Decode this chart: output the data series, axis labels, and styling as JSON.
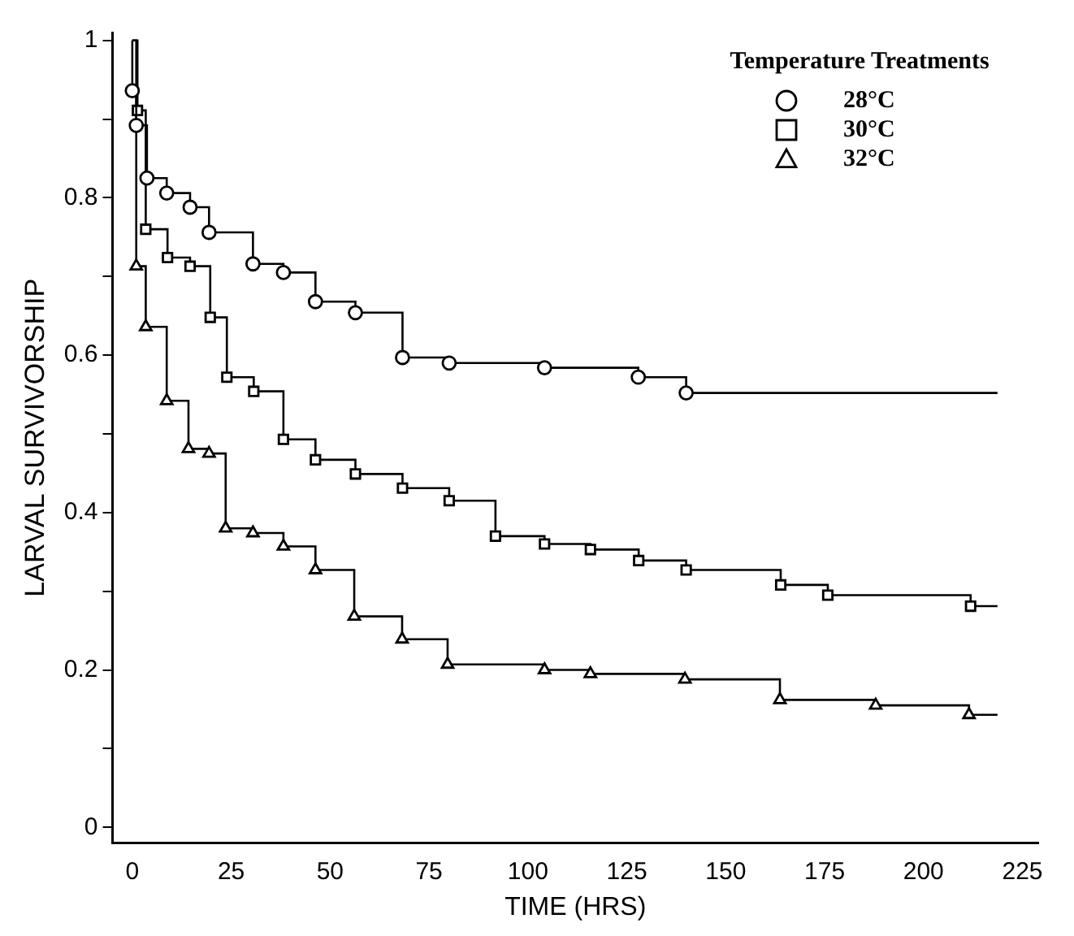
{
  "chart_data": {
    "type": "step",
    "xlabel": "TIME (HRS)",
    "ylabel": "LARVAL SURVIVORSHIP",
    "legend_title": "Temperature Treatments",
    "legend": "top right",
    "grid": false,
    "line_style": "solid",
    "xlim": [
      -5,
      229
    ],
    "xticks": [
      0,
      25,
      50,
      75,
      100,
      125,
      150,
      175,
      200,
      225
    ],
    "ylim": [
      -0.02,
      1.01
    ],
    "yticks": [
      0,
      {
        "value": 0.1,
        "label": null
      },
      0.2,
      {
        "value": 0.3,
        "label": null
      },
      0.4,
      {
        "value": 0.5,
        "label": null
      },
      0.6,
      {
        "value": 0.7,
        "label": null
      },
      0.8,
      {
        "value": 0.9,
        "label": null
      },
      1
    ],
    "series": [
      {
        "name": "28°C",
        "color": "#000000",
        "marker": "circle",
        "x": [
          0,
          0,
          1,
          3.7,
          8.7,
          14.6,
          19.4,
          30.5,
          38.2,
          46.3,
          56.4,
          68.3,
          80.1,
          104.2,
          127.9,
          140,
          218.7
        ],
        "values": [
          1,
          0.936,
          0.892,
          0.825,
          0.806,
          0.788,
          0.756,
          0.716,
          0.705,
          0.668,
          0.654,
          0.597,
          0.59,
          0.584,
          0.572,
          0.552,
          0.552
        ]
      },
      {
        "name": "30°C",
        "color": "#000000",
        "marker": "square",
        "x": [
          0,
          1.3,
          3.4,
          8.9,
          14.6,
          19.7,
          23.9,
          30.7,
          38.2,
          46.3,
          56.4,
          68.3,
          80.1,
          91.8,
          104.2,
          115.8,
          128,
          140,
          163.9,
          175.8,
          211.9,
          218.7
        ],
        "values": [
          1,
          0.911,
          0.76,
          0.724,
          0.713,
          0.648,
          0.572,
          0.554,
          0.493,
          0.467,
          0.449,
          0.431,
          0.415,
          0.37,
          0.36,
          0.353,
          0.339,
          0.327,
          0.308,
          0.295,
          0.281,
          0.281
        ]
      },
      {
        "name": "32°C",
        "color": "#000000",
        "marker": "triangle",
        "x": [
          0,
          1,
          3.4,
          8.7,
          14.2,
          19.4,
          23.6,
          30.5,
          38.2,
          46.3,
          56.1,
          68.2,
          79.7,
          104.2,
          115.8,
          139.7,
          163.7,
          187.9,
          211.5,
          218.7
        ],
        "values": [
          1,
          0.713,
          0.636,
          0.542,
          0.481,
          0.475,
          0.38,
          0.374,
          0.357,
          0.327,
          0.268,
          0.239,
          0.207,
          0.2,
          0.195,
          0.188,
          0.162,
          0.155,
          0.143,
          0.143
        ]
      }
    ]
  }
}
